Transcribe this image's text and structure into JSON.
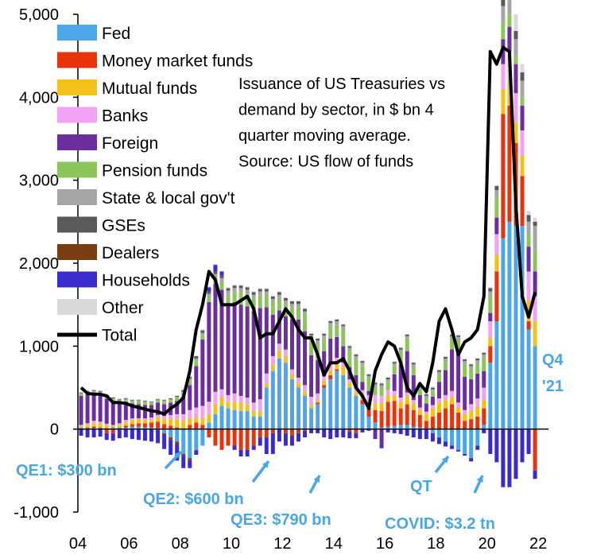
{
  "chart_data": {
    "type": "bar",
    "stacked": true,
    "note": [
      "Issuance of US Treasuries vs",
      "demand by sector, in $ bn 4",
      "quarter moving average.",
      "Source: US flow of funds"
    ],
    "xlabel": "",
    "ylabel": "",
    "ylim": [
      -1000,
      5000
    ],
    "yticks": [
      -1000,
      0,
      1000,
      2000,
      3000,
      4000,
      5000
    ],
    "ytick_labels": [
      "-1,000",
      "0",
      "1,000",
      "2,000",
      "3,000",
      "4,000",
      "5,000"
    ],
    "xlim": [
      2004.0,
      2022.4
    ],
    "xticks": [
      2004,
      2006,
      2008,
      2010,
      2012,
      2014,
      2016,
      2018,
      2020,
      2022
    ],
    "xtick_labels": [
      "04",
      "06",
      "08",
      "10",
      "12",
      "14",
      "16",
      "18",
      "20",
      "22"
    ],
    "legend_position": "top-left",
    "series_colors": {
      "Fed": "#4da6e8",
      "Money market funds": "#e8320c",
      "Mutual funds": "#f4c01a",
      "Banks": "#f2a2f2",
      "Foreign": "#6a2e9e",
      "Pension funds": "#8cc65a",
      "State & local gov't": "#a6a6a6",
      "GSEs": "#5a5a5a",
      "Dealers": "#7a3d12",
      "Households": "#3a2ccc",
      "Other": "#d9d9d9",
      "Total": "#000000"
    },
    "legend": [
      "Fed",
      "Money market funds",
      "Mutual funds",
      "Banks",
      "Foreign",
      "Pension funds",
      "State & local gov't",
      "GSEs",
      "Dealers",
      "Households",
      "Other",
      "Total"
    ],
    "x_quarters": [
      2004.0,
      2004.25,
      2004.5,
      2004.75,
      2005.0,
      2005.25,
      2005.5,
      2005.75,
      2006.0,
      2006.25,
      2006.5,
      2006.75,
      2007.0,
      2007.25,
      2007.5,
      2007.75,
      2008.0,
      2008.25,
      2008.5,
      2008.75,
      2009.0,
      2009.25,
      2009.5,
      2009.75,
      2010.0,
      2010.25,
      2010.5,
      2010.75,
      2011.0,
      2011.25,
      2011.5,
      2011.75,
      2012.0,
      2012.25,
      2012.5,
      2012.75,
      2013.0,
      2013.25,
      2013.5,
      2013.75,
      2014.0,
      2014.25,
      2014.5,
      2014.75,
      2015.0,
      2015.25,
      2015.5,
      2015.75,
      2016.0,
      2016.25,
      2016.5,
      2016.75,
      2017.0,
      2017.25,
      2017.5,
      2017.75,
      2018.0,
      2018.25,
      2018.5,
      2018.75,
      2019.0,
      2019.25,
      2019.5,
      2019.75,
      2020.0,
      2020.25,
      2020.5,
      2020.75,
      2021.0,
      2021.25,
      2021.5,
      2021.75
    ],
    "series": [
      {
        "name": "Fed",
        "values": [
          20,
          10,
          10,
          10,
          15,
          20,
          20,
          20,
          30,
          30,
          20,
          20,
          10,
          -50,
          -100,
          -150,
          -300,
          -350,
          -250,
          -200,
          80,
          180,
          280,
          250,
          230,
          220,
          220,
          150,
          150,
          500,
          700,
          850,
          800,
          600,
          500,
          400,
          250,
          300,
          500,
          600,
          700,
          650,
          500,
          400,
          300,
          150,
          80,
          20,
          30,
          40,
          50,
          50,
          30,
          20,
          0,
          -50,
          -100,
          -150,
          -200,
          -250,
          -300,
          -350,
          -200,
          50,
          800,
          1300,
          2300,
          2500,
          2450,
          2450,
          1200,
          1000
        ]
      },
      {
        "name": "Money market funds",
        "values": [
          0,
          10,
          20,
          10,
          -50,
          -50,
          -10,
          20,
          30,
          40,
          50,
          60,
          80,
          60,
          40,
          20,
          0,
          50,
          80,
          50,
          -100,
          -200,
          -250,
          -200,
          -200,
          -250,
          -250,
          -200,
          -100,
          -100,
          -50,
          0,
          -50,
          -80,
          -50,
          -20,
          0,
          20,
          30,
          50,
          20,
          0,
          -30,
          -50,
          50,
          100,
          150,
          200,
          300,
          300,
          200,
          250,
          200,
          150,
          100,
          150,
          200,
          250,
          300,
          200,
          100,
          120,
          150,
          200,
          200,
          600,
          1500,
          1400,
          1000,
          600,
          100,
          -500
        ]
      },
      {
        "name": "Mutual funds",
        "values": [
          20,
          30,
          40,
          50,
          30,
          20,
          30,
          40,
          50,
          50,
          40,
          30,
          50,
          60,
          80,
          100,
          100,
          80,
          60,
          80,
          100,
          120,
          100,
          80,
          100,
          100,
          80,
          70,
          60,
          50,
          80,
          100,
          80,
          60,
          60,
          50,
          40,
          30,
          50,
          60,
          80,
          100,
          60,
          40,
          40,
          60,
          80,
          100,
          80,
          60,
          80,
          100,
          80,
          60,
          80,
          100,
          120,
          100,
          80,
          60,
          80,
          100,
          120,
          100,
          100,
          200,
          300,
          300,
          250,
          250,
          250,
          300
        ]
      },
      {
        "name": "Banks",
        "values": [
          10,
          20,
          30,
          20,
          20,
          10,
          20,
          30,
          20,
          10,
          20,
          30,
          30,
          40,
          50,
          60,
          80,
          100,
          120,
          150,
          150,
          150,
          100,
          80,
          100,
          80,
          80,
          100,
          150,
          120,
          100,
          80,
          80,
          60,
          60,
          80,
          100,
          80,
          60,
          80,
          60,
          50,
          40,
          60,
          80,
          100,
          100,
          80,
          60,
          60,
          50,
          40,
          40,
          30,
          30,
          40,
          50,
          60,
          80,
          60,
          50,
          80,
          100,
          150,
          200,
          250,
          300,
          350,
          350,
          300,
          350,
          300
        ]
      },
      {
        "name": "Foreign",
        "values": [
          350,
          350,
          330,
          320,
          300,
          280,
          250,
          220,
          180,
          170,
          160,
          150,
          150,
          140,
          150,
          160,
          200,
          300,
          500,
          800,
          1200,
          1300,
          1200,
          1100,
          1100,
          1100,
          1100,
          1100,
          1100,
          800,
          500,
          400,
          400,
          600,
          700,
          650,
          500,
          400,
          300,
          300,
          250,
          200,
          150,
          150,
          100,
          50,
          -100,
          -200,
          0,
          200,
          400,
          500,
          300,
          150,
          100,
          100,
          200,
          300,
          500,
          600,
          400,
          300,
          300,
          200,
          100,
          200,
          300,
          300,
          350,
          300,
          300,
          300
        ]
      },
      {
        "name": "Pension funds",
        "values": [
          20,
          20,
          20,
          30,
          30,
          30,
          20,
          20,
          20,
          30,
          30,
          20,
          20,
          30,
          30,
          40,
          50,
          60,
          60,
          50,
          50,
          60,
          80,
          100,
          120,
          150,
          150,
          150,
          150,
          150,
          150,
          150,
          150,
          150,
          150,
          200,
          200,
          200,
          150,
          150,
          150,
          200,
          200,
          200,
          200,
          150,
          100,
          100,
          100,
          100,
          150,
          150,
          100,
          80,
          60,
          60,
          80,
          100,
          120,
          150,
          150,
          120,
          120,
          150,
          200,
          250,
          200,
          150,
          100,
          100,
          150,
          250
        ]
      },
      {
        "name": "State & local gov't",
        "values": [
          10,
          10,
          10,
          10,
          10,
          10,
          10,
          10,
          10,
          10,
          10,
          10,
          10,
          10,
          10,
          10,
          20,
          20,
          30,
          30,
          50,
          60,
          60,
          60,
          50,
          50,
          50,
          50,
          50,
          40,
          40,
          40,
          40,
          40,
          40,
          40,
          40,
          40,
          40,
          40,
          40,
          40,
          30,
          30,
          30,
          30,
          30,
          30,
          30,
          30,
          30,
          30,
          30,
          30,
          30,
          30,
          40,
          40,
          40,
          40,
          40,
          40,
          40,
          50,
          60,
          80,
          200,
          200,
          200,
          200,
          150,
          300
        ]
      },
      {
        "name": "GSEs",
        "values": [
          10,
          10,
          10,
          10,
          10,
          10,
          10,
          10,
          10,
          10,
          10,
          10,
          10,
          10,
          10,
          10,
          20,
          20,
          30,
          30,
          30,
          30,
          30,
          30,
          30,
          30,
          30,
          30,
          30,
          30,
          30,
          30,
          30,
          30,
          30,
          30,
          20,
          20,
          20,
          20,
          20,
          20,
          20,
          20,
          20,
          20,
          20,
          20,
          20,
          20,
          20,
          20,
          20,
          20,
          20,
          20,
          20,
          20,
          20,
          20,
          20,
          20,
          20,
          20,
          40,
          50,
          100,
          100,
          100,
          100,
          80,
          50
        ]
      },
      {
        "name": "Dealers",
        "values": [
          0,
          0,
          0,
          0,
          0,
          0,
          0,
          0,
          0,
          0,
          0,
          0,
          -10,
          -20,
          -30,
          -30,
          -20,
          -20,
          -10,
          0,
          0,
          0,
          0,
          0,
          0,
          0,
          0,
          0,
          0,
          0,
          0,
          0,
          0,
          0,
          0,
          0,
          0,
          0,
          0,
          0,
          0,
          0,
          0,
          0,
          0,
          0,
          0,
          0,
          0,
          0,
          0,
          0,
          0,
          0,
          0,
          0,
          0,
          0,
          0,
          0,
          0,
          0,
          0,
          0,
          0,
          0,
          0,
          0,
          0,
          0,
          0,
          0
        ]
      },
      {
        "name": "Households",
        "values": [
          -80,
          -100,
          -100,
          -90,
          -80,
          -90,
          -100,
          -100,
          -120,
          -130,
          -140,
          -150,
          -160,
          -170,
          -180,
          -200,
          -150,
          -100,
          -50,
          0,
          50,
          80,
          50,
          0,
          -50,
          -80,
          -80,
          -50,
          -100,
          -200,
          -250,
          -150,
          -150,
          -120,
          -100,
          -80,
          -50,
          -50,
          -100,
          -120,
          -100,
          -100,
          -80,
          -60,
          -40,
          -20,
          -20,
          -30,
          -40,
          -50,
          -60,
          -80,
          -100,
          -120,
          -120,
          -100,
          -80,
          -60,
          -40,
          -20,
          -20,
          -40,
          -50,
          -50,
          -300,
          -400,
          -700,
          -700,
          -600,
          -400,
          -300,
          -100
        ]
      },
      {
        "name": "Other",
        "values": [
          10,
          10,
          10,
          10,
          10,
          10,
          10,
          10,
          10,
          10,
          10,
          10,
          10,
          10,
          10,
          10,
          10,
          10,
          10,
          10,
          10,
          10,
          10,
          10,
          10,
          10,
          10,
          10,
          10,
          10,
          10,
          10,
          10,
          10,
          10,
          10,
          10,
          10,
          10,
          10,
          10,
          10,
          10,
          10,
          10,
          10,
          10,
          10,
          10,
          10,
          10,
          10,
          10,
          10,
          10,
          10,
          10,
          10,
          10,
          10,
          10,
          10,
          10,
          10,
          10,
          10,
          200,
          200,
          200,
          100,
          50,
          50
        ]
      }
    ],
    "total": {
      "x": [
        2004.0,
        2004.25,
        2004.5,
        2004.75,
        2005.0,
        2005.25,
        2005.5,
        2005.75,
        2006.0,
        2006.25,
        2006.5,
        2006.75,
        2007.0,
        2007.25,
        2007.5,
        2007.75,
        2008.0,
        2008.25,
        2008.5,
        2008.75,
        2009.0,
        2009.25,
        2009.5,
        2009.75,
        2010.0,
        2010.25,
        2010.5,
        2010.75,
        2011.0,
        2011.25,
        2011.5,
        2011.75,
        2012.0,
        2012.25,
        2012.5,
        2012.75,
        2013.0,
        2013.25,
        2013.5,
        2013.75,
        2014.0,
        2014.25,
        2014.5,
        2014.75,
        2015.0,
        2015.25,
        2015.5,
        2015.75,
        2016.0,
        2016.25,
        2016.5,
        2016.75,
        2017.0,
        2017.25,
        2017.5,
        2017.75,
        2018.0,
        2018.25,
        2018.5,
        2018.75,
        2019.0,
        2019.25,
        2019.5,
        2019.75,
        2020.0,
        2020.25,
        2020.5,
        2020.75,
        2021.0,
        2021.25,
        2021.5,
        2021.75
      ],
      "values": [
        500,
        430,
        420,
        420,
        400,
        320,
        320,
        310,
        280,
        260,
        240,
        220,
        210,
        180,
        250,
        300,
        380,
        700,
        1200,
        1500,
        1900,
        1800,
        1500,
        1500,
        1500,
        1550,
        1600,
        1450,
        1100,
        1150,
        1150,
        1300,
        1450,
        1350,
        1200,
        1100,
        1100,
        900,
        650,
        800,
        800,
        850,
        700,
        500,
        400,
        250,
        700,
        900,
        1050,
        1000,
        800,
        500,
        400,
        550,
        450,
        800,
        1300,
        1450,
        1200,
        900,
        1050,
        1100,
        1200,
        1600,
        4550,
        4400,
        4600,
        4550,
        2700,
        1600,
        1350,
        1650
      ]
    },
    "annotations": [
      {
        "text": "QE1: $300 bn",
        "arrow_to": [
          2008.0,
          -250
        ]
      },
      {
        "text": "QE2: $600 bn",
        "arrow_to": [
          2011.0,
          -300
        ]
      },
      {
        "text": "QE3: $790 bn",
        "arrow_to": [
          2013.5,
          -550
        ]
      },
      {
        "text": "QT",
        "arrow_to": [
          2018.5,
          -300
        ]
      },
      {
        "text": "COVID: $3.2 tn",
        "arrow_to": [
          2019.9,
          -500
        ]
      },
      {
        "text": "Q4",
        "arrow_to": null
      },
      {
        "text": "'21",
        "arrow_to": null
      }
    ]
  }
}
